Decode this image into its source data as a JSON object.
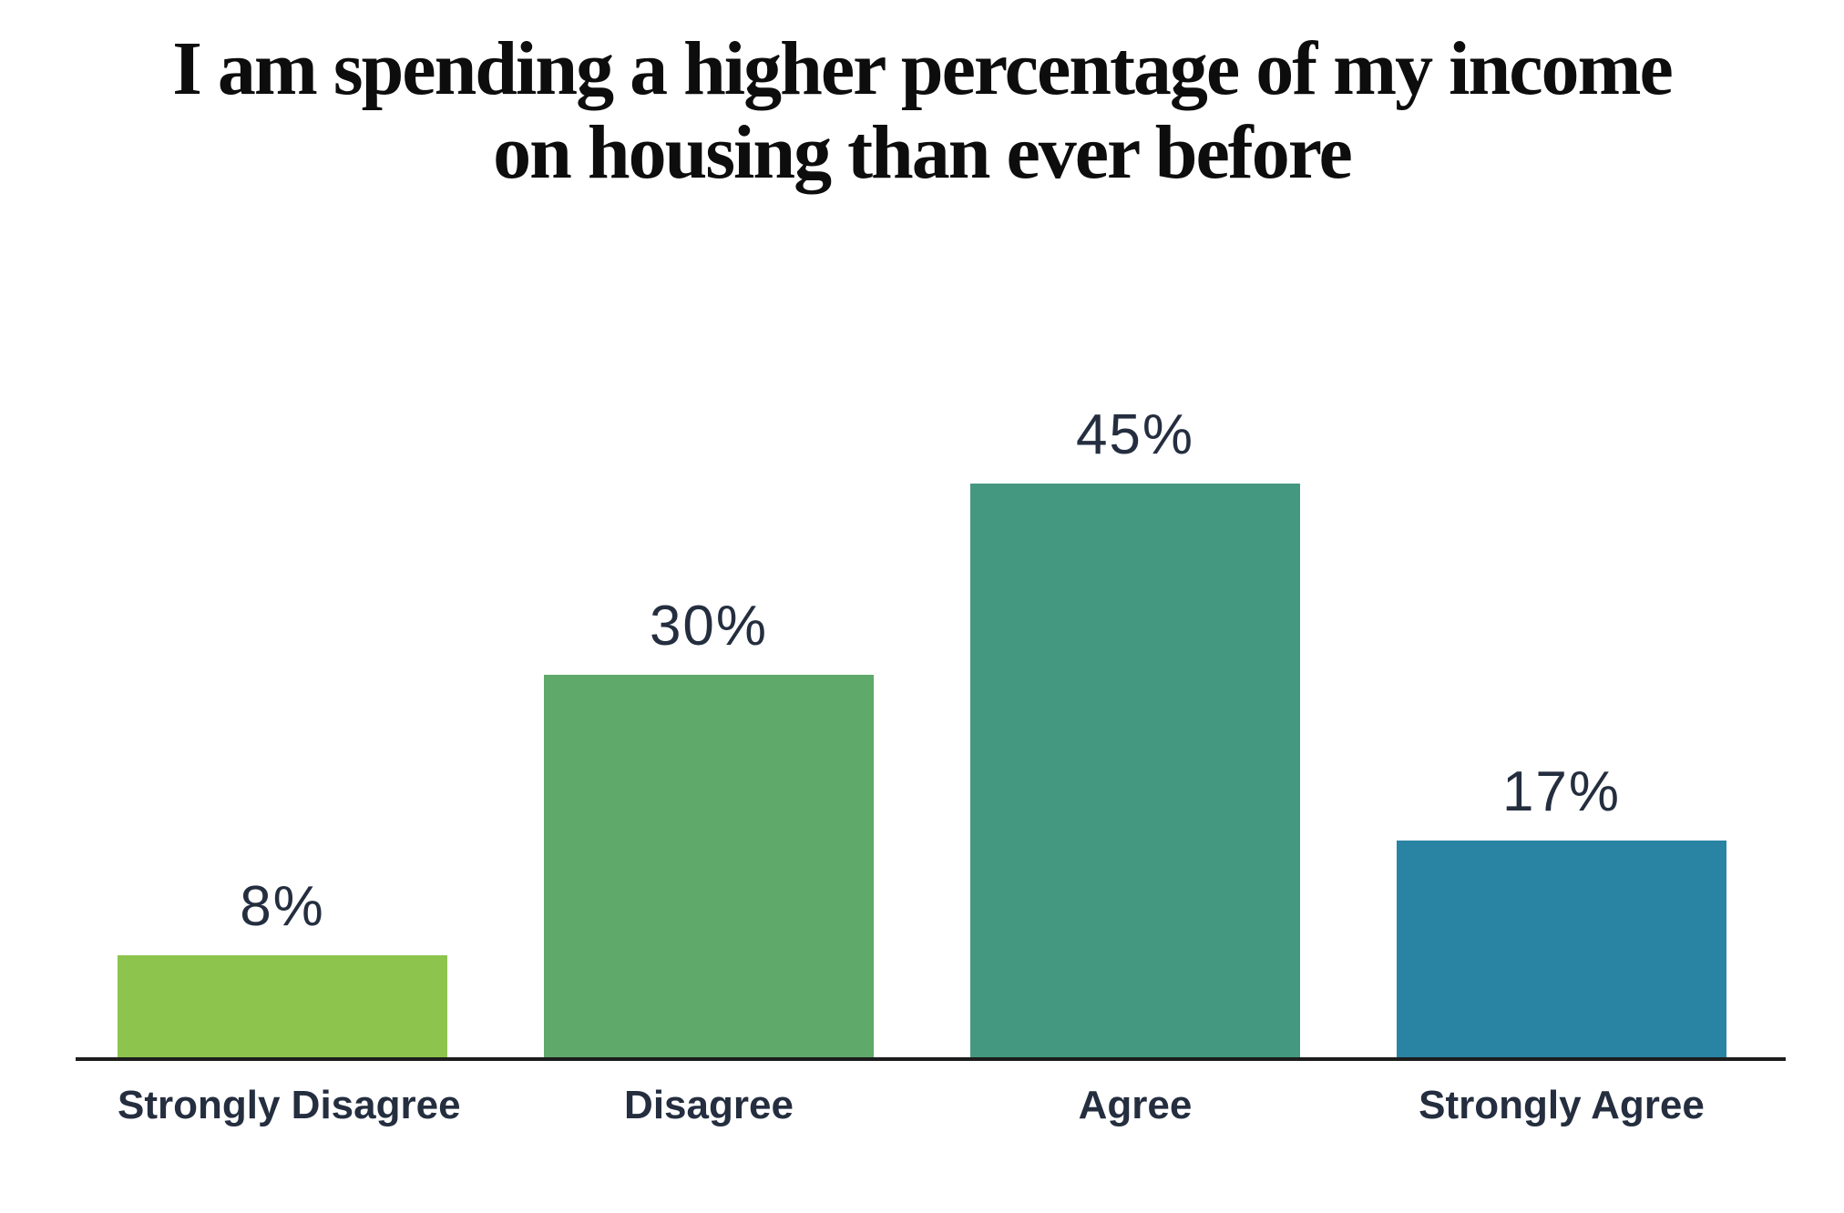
{
  "title": {
    "lines": [
      "I am spending a higher percentage of my income",
      "on housing than ever before"
    ]
  },
  "chart_data": {
    "type": "bar",
    "title": "I am spending a higher percentage of my income on housing than ever before",
    "categories": [
      "Strongly Disagree",
      "Disagree",
      "Agree",
      "Strongly Agree"
    ],
    "values": [
      8,
      30,
      45,
      17
    ],
    "value_labels": [
      "8%",
      "30%",
      "45%",
      "17%"
    ],
    "bar_colors": [
      "#8cc44e",
      "#5fa96a",
      "#449880",
      "#2984a3"
    ],
    "xlabel": "",
    "ylabel": "",
    "ylim": [
      0,
      45
    ],
    "grid": false,
    "legend": false,
    "orientation": "vertical"
  },
  "colors": {
    "background": "#ffffff",
    "label_text": "#242e3f",
    "title_text": "#0d0d0d",
    "axis": "#1c1c1c"
  }
}
